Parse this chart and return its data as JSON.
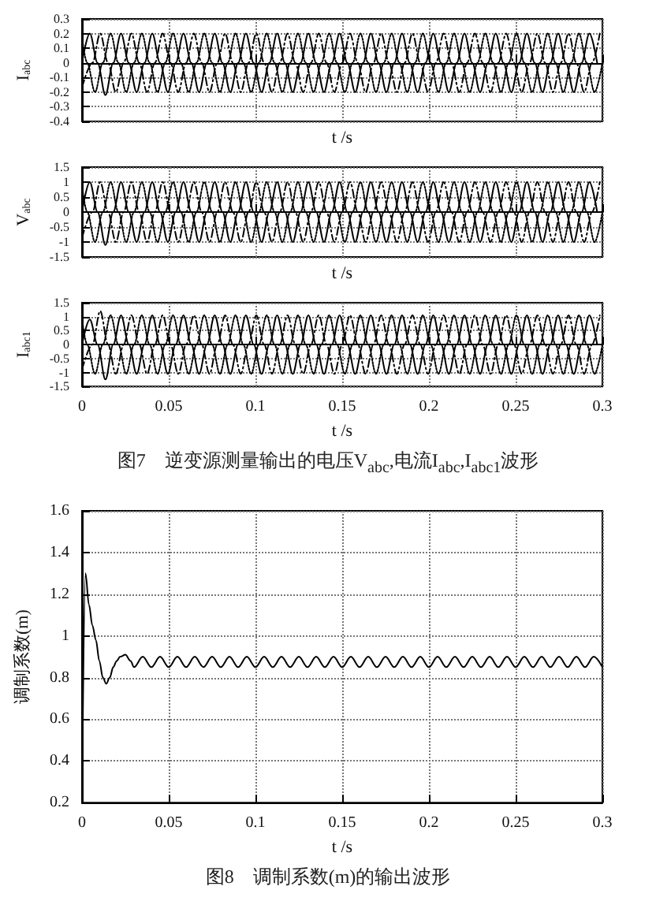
{
  "chart_data": [
    {
      "type": "line",
      "xlabel": "t /s",
      "ylabel": "I$_{abc}$",
      "xlim": [
        0,
        0.3
      ],
      "xticks": [
        0,
        0.05,
        0.1,
        0.15,
        0.2,
        0.25,
        0.3
      ],
      "ylim": [
        -0.4,
        0.3
      ],
      "yticks": [
        -0.4,
        -0.3,
        -0.2,
        -0.1,
        0,
        0.1,
        0.2,
        0.3
      ],
      "grid": true,
      "tick_labels": "y",
      "series": [
        {
          "color": "#000000",
          "line_style": "solid",
          "x": [
            0,
            0.0045,
            0.009,
            0.0135,
            0.018,
            0.0225,
            0.027,
            0.0315,
            0.036,
            0.0405,
            0.045,
            0.0495,
            0.054,
            0.0585,
            0.063,
            0.0675,
            0.072,
            0.0765,
            0.081,
            0.0855,
            0.09,
            0.0945,
            0.099,
            0.1035,
            0.108,
            0.1125,
            0.117,
            0.1215,
            0.126,
            0.1305,
            0.135,
            0.1395,
            0.144,
            0.1485,
            0.153,
            0.1575,
            0.162,
            0.1665,
            0.171,
            0.1755,
            0.18,
            0.1845,
            0.189,
            0.1935,
            0.198,
            0.2025,
            0.207,
            0.2115,
            0.216,
            0.2205,
            0.225,
            0.2295,
            0.234,
            0.2385,
            0.243,
            0.2475,
            0.252,
            0.2565,
            0.261,
            0.2655,
            0.27,
            0.2745,
            0.279,
            0.2835,
            0.288,
            0.2925,
            0.297
          ],
          "values": [
            0,
            0.2,
            0,
            -0.22,
            0,
            0.2,
            0,
            -0.2,
            0,
            0.2,
            0,
            -0.2,
            0,
            0.2,
            0,
            -0.2,
            0,
            0.2,
            0,
            -0.2,
            0,
            0.2,
            0,
            -0.2,
            0,
            0.2,
            0,
            -0.2,
            0,
            0.2,
            0,
            -0.2,
            0,
            0.2,
            0,
            -0.2,
            0,
            0.2,
            0,
            -0.2,
            0,
            0.2,
            0,
            -0.2,
            0,
            0.2,
            0,
            -0.2,
            0,
            0.2,
            0,
            -0.2,
            0,
            0.2,
            0,
            -0.2,
            0,
            0.2,
            0,
            -0.2,
            0,
            0.2,
            0,
            -0.2,
            0,
            0.2,
            0
          ]
        },
        {
          "color": "#000000",
          "line_style": "dashed",
          "x": [
            0,
            0.006,
            0.0105,
            0.015,
            0.0195,
            0.024,
            0.0285,
            0.033,
            0.0375,
            0.042,
            0.0465,
            0.051,
            0.0555,
            0.06,
            0.0645,
            0.069,
            0.0735,
            0.078,
            0.0825,
            0.087,
            0.0915,
            0.096,
            0.1005,
            0.105,
            0.1095,
            0.114,
            0.1185,
            0.123,
            0.1275,
            0.132,
            0.1365,
            0.141,
            0.1455,
            0.15,
            0.1545,
            0.159,
            0.1635,
            0.168,
            0.1725,
            0.177,
            0.1815,
            0.186,
            0.1905,
            0.195,
            0.1995,
            0.204,
            0.2085,
            0.213,
            0.2175,
            0.222,
            0.2265,
            0.231,
            0.2355,
            0.24,
            0.2445,
            0.249,
            0.2535,
            0.258,
            0.2625,
            0.267,
            0.2715,
            0.276,
            0.2805,
            0.285,
            0.2895,
            0.294,
            0.2985
          ],
          "values": [
            -0.17,
            0,
            0.2,
            0,
            -0.2,
            0,
            0.2,
            0,
            -0.2,
            0,
            0.2,
            0,
            -0.2,
            0,
            0.2,
            0,
            -0.2,
            0,
            0.2,
            0,
            -0.2,
            0,
            0.2,
            0,
            -0.2,
            0,
            0.2,
            0,
            -0.2,
            0,
            0.2,
            0,
            -0.2,
            0,
            0.2,
            0,
            -0.2,
            0,
            0.2,
            0,
            -0.2,
            0,
            0.2,
            0,
            -0.2,
            0,
            0.2,
            0,
            -0.2,
            0,
            0.2,
            0,
            -0.2,
            0,
            0.2,
            0,
            -0.2,
            0,
            0.2,
            0,
            -0.2,
            0,
            0.2,
            0,
            -0.2,
            0,
            0.2
          ]
        },
        {
          "color": "#000000",
          "line_style": "dotted",
          "x": [
            0,
            0.003,
            0.0075,
            0.012,
            0.0165,
            0.021,
            0.0255,
            0.03,
            0.0345,
            0.039,
            0.0435,
            0.048,
            0.0525,
            0.057,
            0.0615,
            0.066,
            0.0705,
            0.075,
            0.0795,
            0.084,
            0.0885,
            0.093,
            0.0975,
            0.102,
            0.1065,
            0.111,
            0.1155,
            0.12,
            0.1245,
            0.129,
            0.1335,
            0.138,
            0.1425,
            0.147,
            0.1515,
            0.156,
            0.1605,
            0.165,
            0.1695,
            0.174,
            0.1785,
            0.183,
            0.1875,
            0.192,
            0.1965,
            0.201,
            0.2055,
            0.21,
            0.2145,
            0.219,
            0.2235,
            0.228,
            0.2325,
            0.237,
            0.2415,
            0.246,
            0.2505,
            0.255,
            0.2595,
            0.264,
            0.2685,
            0.273,
            0.2775,
            0.282,
            0.2865,
            0.291,
            0.2955,
            0.3
          ],
          "values": [
            0.17,
            0,
            -0.2,
            0,
            0.2,
            0,
            -0.2,
            0,
            0.2,
            0,
            -0.2,
            0,
            0.2,
            0,
            -0.2,
            0,
            0.2,
            0,
            -0.2,
            0,
            0.2,
            0,
            -0.2,
            0,
            0.2,
            0,
            -0.2,
            0,
            0.2,
            0,
            -0.2,
            0,
            0.2,
            0,
            -0.2,
            0,
            0.2,
            0,
            -0.2,
            0,
            0.2,
            0,
            -0.2,
            0,
            0.2,
            0,
            -0.2,
            0,
            0.2,
            0,
            -0.2,
            0,
            0.2,
            0,
            -0.2,
            0,
            0.2,
            0,
            -0.2,
            0,
            0.2,
            0,
            -0.2,
            0,
            0.2,
            0,
            -0.2,
            0
          ]
        }
      ]
    },
    {
      "type": "line",
      "xlabel": "t /s",
      "ylabel": "V$_{abc}$",
      "xlim": [
        0,
        0.3
      ],
      "xticks": [
        0,
        0.05,
        0.1,
        0.15,
        0.2,
        0.25,
        0.3
      ],
      "ylim": [
        -1.5,
        1.5
      ],
      "yticks": [
        -1.5,
        -1,
        -0.5,
        0,
        0.5,
        1,
        1.5
      ],
      "grid": true,
      "tick_labels": "y",
      "series": [
        {
          "color": "#000000",
          "line_style": "solid",
          "x": [
            0,
            0.0045,
            0.009,
            0.0135,
            0.018,
            0.0225,
            0.027,
            0.0315,
            0.036,
            0.0405,
            0.045,
            0.0495,
            0.054,
            0.0585,
            0.063,
            0.0675,
            0.072,
            0.0765,
            0.081,
            0.0855,
            0.09,
            0.0945,
            0.099,
            0.1035,
            0.108,
            0.1125,
            0.117,
            0.1215,
            0.126,
            0.1305,
            0.135,
            0.1395,
            0.144,
            0.1485,
            0.153,
            0.1575,
            0.162,
            0.1665,
            0.171,
            0.1755,
            0.18,
            0.1845,
            0.189,
            0.1935,
            0.198,
            0.2025,
            0.207,
            0.2115,
            0.216,
            0.2205,
            0.225,
            0.2295,
            0.234,
            0.2385,
            0.243,
            0.2475,
            0.252,
            0.2565,
            0.261,
            0.2655,
            0.27,
            0.2745,
            0.279,
            0.2835,
            0.288,
            0.2925,
            0.297
          ],
          "values": [
            0,
            1,
            0,
            -1.1,
            0,
            1,
            0,
            -1,
            0,
            1,
            0,
            -1,
            0,
            1,
            0,
            -1,
            0,
            1,
            0,
            -1,
            0,
            1,
            0,
            -1,
            0,
            1,
            0,
            -1,
            0,
            1,
            0,
            -1,
            0,
            1,
            0,
            -1,
            0,
            1,
            0,
            -1,
            0,
            1,
            0,
            -1,
            0,
            1,
            0,
            -1,
            0,
            1,
            0,
            -1,
            0,
            1,
            0,
            -1,
            0,
            1,
            0,
            -1,
            0,
            1,
            0,
            -1,
            0,
            1,
            0
          ]
        },
        {
          "color": "#000000",
          "line_style": "dashed",
          "x": [
            0,
            0.006,
            0.0105,
            0.015,
            0.0195,
            0.024,
            0.0285,
            0.033,
            0.0375,
            0.042,
            0.0465,
            0.051,
            0.0555,
            0.06,
            0.0645,
            0.069,
            0.0735,
            0.078,
            0.0825,
            0.087,
            0.0915,
            0.096,
            0.1005,
            0.105,
            0.1095,
            0.114,
            0.1185,
            0.123,
            0.1275,
            0.132,
            0.1365,
            0.141,
            0.1455,
            0.15,
            0.1545,
            0.159,
            0.1635,
            0.168,
            0.1725,
            0.177,
            0.1815,
            0.186,
            0.1905,
            0.195,
            0.1995,
            0.204,
            0.2085,
            0.213,
            0.2175,
            0.222,
            0.2265,
            0.231,
            0.2355,
            0.24,
            0.2445,
            0.249,
            0.2535,
            0.258,
            0.2625,
            0.267,
            0.2715,
            0.276,
            0.2805,
            0.285,
            0.2895,
            0.294,
            0.2985
          ],
          "values": [
            -0.87,
            0,
            1,
            0,
            -1,
            0,
            1,
            0,
            -1,
            0,
            1,
            0,
            -1,
            0,
            1,
            0,
            -1,
            0,
            1,
            0,
            -1,
            0,
            1,
            0,
            -1,
            0,
            1,
            0,
            -1,
            0,
            1,
            0,
            -1,
            0,
            1,
            0,
            -1,
            0,
            1,
            0,
            -1,
            0,
            1,
            0,
            -1,
            0,
            1,
            0,
            -1,
            0,
            1,
            0,
            -1,
            0,
            1,
            0,
            -1,
            0,
            1,
            0,
            -1,
            0,
            1,
            0,
            -1,
            0,
            1
          ]
        },
        {
          "color": "#000000",
          "line_style": "dotted",
          "x": [
            0,
            0.003,
            0.0075,
            0.012,
            0.0165,
            0.021,
            0.0255,
            0.03,
            0.0345,
            0.039,
            0.0435,
            0.048,
            0.0525,
            0.057,
            0.0615,
            0.066,
            0.0705,
            0.075,
            0.0795,
            0.084,
            0.0885,
            0.093,
            0.0975,
            0.102,
            0.1065,
            0.111,
            0.1155,
            0.12,
            0.1245,
            0.129,
            0.1335,
            0.138,
            0.1425,
            0.147,
            0.1515,
            0.156,
            0.1605,
            0.165,
            0.1695,
            0.174,
            0.1785,
            0.183,
            0.1875,
            0.192,
            0.1965,
            0.201,
            0.2055,
            0.21,
            0.2145,
            0.219,
            0.2235,
            0.228,
            0.2325,
            0.237,
            0.2415,
            0.246,
            0.2505,
            0.255,
            0.2595,
            0.264,
            0.2685,
            0.273,
            0.2775,
            0.282,
            0.2865,
            0.291,
            0.2955,
            0.3
          ],
          "values": [
            0.87,
            0,
            -1,
            0,
            1,
            0,
            -1,
            0,
            1,
            0,
            -1,
            0,
            1,
            0,
            -1,
            0,
            1,
            0,
            -1,
            0,
            1,
            0,
            -1,
            0,
            1,
            0,
            -1,
            0,
            1,
            0,
            -1,
            0,
            1,
            0,
            -1,
            0,
            1,
            0,
            -1,
            0,
            1,
            0,
            -1,
            0,
            1,
            0,
            -1,
            0,
            1,
            0,
            -1,
            0,
            1,
            0,
            -1,
            0,
            1,
            0,
            -1,
            0,
            1,
            0,
            -1,
            0,
            1,
            0,
            -1,
            0
          ]
        }
      ]
    },
    {
      "type": "line",
      "xlabel": "t /s",
      "ylabel": "I$_{abc1}$",
      "xlim": [
        0,
        0.3
      ],
      "xticks": [
        0,
        0.05,
        0.1,
        0.15,
        0.2,
        0.25,
        0.3
      ],
      "ylim": [
        -1.5,
        1.5
      ],
      "yticks": [
        -1.5,
        -1,
        -0.5,
        0,
        0.5,
        1,
        1.5
      ],
      "grid": true,
      "annotations": [
        "图7　逆变源测量输出的电压V$_{abc}$,电流I$_{abc}$,I$_{abc1}$波形"
      ],
      "series": [
        {
          "color": "#000000",
          "line_style": "solid",
          "x": [
            0,
            0.0045,
            0.009,
            0.0135,
            0.018,
            0.0225,
            0.027,
            0.0315,
            0.036,
            0.0405,
            0.045,
            0.0495,
            0.054,
            0.0585,
            0.063,
            0.0675,
            0.072,
            0.0765,
            0.081,
            0.0855,
            0.09,
            0.0945,
            0.099,
            0.1035,
            0.108,
            0.1125,
            0.117,
            0.1215,
            0.126,
            0.1305,
            0.135,
            0.1395,
            0.144,
            0.1485,
            0.153,
            0.1575,
            0.162,
            0.1665,
            0.171,
            0.1755,
            0.18,
            0.1845,
            0.189,
            0.1935,
            0.198,
            0.2025,
            0.207,
            0.2115,
            0.216,
            0.2205,
            0.225,
            0.2295,
            0.234,
            0.2385,
            0.243,
            0.2475,
            0.252,
            0.2565,
            0.261,
            0.2655,
            0.27,
            0.2745,
            0.279,
            0.2835,
            0.288,
            0.2925,
            0.297
          ],
          "values": [
            0,
            0.9,
            0,
            -1.25,
            0,
            1.05,
            0,
            -1.05,
            0,
            1.05,
            0,
            -1.05,
            0,
            1.05,
            0,
            -1.05,
            0,
            1.05,
            0,
            -1.05,
            0,
            1.05,
            0,
            -1.05,
            0,
            1.05,
            0,
            -1.05,
            0,
            1.05,
            0,
            -1.05,
            0,
            1.05,
            0,
            -1.05,
            0,
            1.05,
            0,
            -1.05,
            0,
            1.05,
            0,
            -1.05,
            0,
            1.05,
            0,
            -1.05,
            0,
            1.05,
            0,
            -1.05,
            0,
            1.05,
            0,
            -1.05,
            0,
            1.05,
            0,
            -1.05,
            0,
            1.05,
            0,
            -1.05,
            0,
            1.05,
            0
          ]
        },
        {
          "color": "#000000",
          "line_style": "dashed",
          "x": [
            0,
            0.006,
            0.0105,
            0.015,
            0.0195,
            0.024,
            0.0285,
            0.033,
            0.0375,
            0.042,
            0.0465,
            0.051,
            0.0555,
            0.06,
            0.0645,
            0.069,
            0.0735,
            0.078,
            0.0825,
            0.087,
            0.0915,
            0.096,
            0.1005,
            0.105,
            0.1095,
            0.114,
            0.1185,
            0.123,
            0.1275,
            0.132,
            0.1365,
            0.141,
            0.1455,
            0.15,
            0.1545,
            0.159,
            0.1635,
            0.168,
            0.1725,
            0.177,
            0.1815,
            0.186,
            0.1905,
            0.195,
            0.1995,
            0.204,
            0.2085,
            0.213,
            0.2175,
            0.222,
            0.2265,
            0.231,
            0.2355,
            0.24,
            0.2445,
            0.249,
            0.2535,
            0.258,
            0.2625,
            0.267,
            0.2715,
            0.276,
            0.2805,
            0.285,
            0.2895,
            0.294,
            0.2985
          ],
          "values": [
            -0.9,
            0,
            1.2,
            0,
            -1.05,
            0,
            1.05,
            0,
            -1.05,
            0,
            1.05,
            0,
            -1.05,
            0,
            1.05,
            0,
            -1.05,
            0,
            1.05,
            0,
            -1.05,
            0,
            1.05,
            0,
            -1.05,
            0,
            1.05,
            0,
            -1.05,
            0,
            1.05,
            0,
            -1.05,
            0,
            1.05,
            0,
            -1.05,
            0,
            1.05,
            0,
            -1.05,
            0,
            1.05,
            0,
            -1.05,
            0,
            1.05,
            0,
            -1.05,
            0,
            1.05,
            0,
            -1.05,
            0,
            1.05,
            0,
            -1.05,
            0,
            1.05,
            0,
            -1.05,
            0,
            1.05,
            0,
            -1.05,
            0,
            1.05
          ]
        },
        {
          "color": "#000000",
          "line_style": "dotted",
          "x": [
            0,
            0.003,
            0.0075,
            0.012,
            0.0165,
            0.021,
            0.0255,
            0.03,
            0.0345,
            0.039,
            0.0435,
            0.048,
            0.0525,
            0.057,
            0.0615,
            0.066,
            0.0705,
            0.075,
            0.0795,
            0.084,
            0.0885,
            0.093,
            0.0975,
            0.102,
            0.1065,
            0.111,
            0.1155,
            0.12,
            0.1245,
            0.129,
            0.1335,
            0.138,
            0.1425,
            0.147,
            0.1515,
            0.156,
            0.1605,
            0.165,
            0.1695,
            0.174,
            0.1785,
            0.183,
            0.1875,
            0.192,
            0.1965,
            0.201,
            0.2055,
            0.21,
            0.2145,
            0.219,
            0.2235,
            0.228,
            0.2325,
            0.237,
            0.2415,
            0.246,
            0.2505,
            0.255,
            0.2595,
            0.264,
            0.2685,
            0.273,
            0.2775,
            0.282,
            0.2865,
            0.291,
            0.2955,
            0.3
          ],
          "values": [
            0.9,
            0,
            -1.05,
            0,
            1.05,
            0,
            -1.05,
            0,
            1.05,
            0,
            -1.05,
            0,
            1.05,
            0,
            -1.05,
            0,
            1.05,
            0,
            -1.05,
            0,
            1.05,
            0,
            -1.05,
            0,
            1.05,
            0,
            -1.05,
            0,
            1.05,
            0,
            -1.05,
            0,
            1.05,
            0,
            -1.05,
            0,
            1.05,
            0,
            -1.05,
            0,
            1.05,
            0,
            -1.05,
            0,
            1.05,
            0,
            -1.05,
            0,
            1.05,
            0,
            -1.05,
            0,
            1.05,
            0,
            -1.05,
            0,
            1.05,
            0,
            -1.05,
            0,
            1.05,
            0,
            -1.05,
            0,
            1.05,
            0,
            -1.05,
            0
          ]
        }
      ]
    },
    {
      "type": "line",
      "xlabel": "t /s",
      "ylabel": "调制系数(m)",
      "xlim": [
        0,
        0.3
      ],
      "xticks": [
        0,
        0.05,
        0.1,
        0.15,
        0.2,
        0.25,
        0.3
      ],
      "ylim": [
        0.2,
        1.6
      ],
      "yticks": [
        0.2,
        0.4,
        0.6,
        0.8,
        1,
        1.2,
        1.4,
        1.6
      ],
      "grid": true,
      "annotations": [
        "图8　调制系数(m)的输出波形"
      ],
      "series": [
        {
          "color": "#000000",
          "line_style": "solid",
          "x": [
            0,
            0.002,
            0.004,
            0.006,
            0.008,
            0.01,
            0.012,
            0.014,
            0.016,
            0.018,
            0.02,
            0.022,
            0.025,
            0.028,
            0.03,
            0.035,
            0.04,
            0.045,
            0.05,
            0.055,
            0.06,
            0.065,
            0.07,
            0.075,
            0.08,
            0.085,
            0.09,
            0.095,
            0.1,
            0.105,
            0.11,
            0.115,
            0.12,
            0.125,
            0.13,
            0.135,
            0.14,
            0.145,
            0.15,
            0.155,
            0.16,
            0.165,
            0.17,
            0.175,
            0.18,
            0.185,
            0.19,
            0.195,
            0.2,
            0.205,
            0.21,
            0.215,
            0.22,
            0.225,
            0.23,
            0.235,
            0.24,
            0.245,
            0.25,
            0.255,
            0.26,
            0.265,
            0.27,
            0.275,
            0.28,
            0.285,
            0.29,
            0.295,
            0.3
          ],
          "values": [
            0.2,
            1.3,
            1.15,
            1.05,
            0.98,
            0.88,
            0.8,
            0.77,
            0.8,
            0.85,
            0.88,
            0.9,
            0.91,
            0.88,
            0.85,
            0.9,
            0.85,
            0.9,
            0.85,
            0.9,
            0.85,
            0.9,
            0.85,
            0.9,
            0.85,
            0.9,
            0.85,
            0.9,
            0.85,
            0.9,
            0.85,
            0.9,
            0.85,
            0.9,
            0.85,
            0.9,
            0.85,
            0.9,
            0.85,
            0.9,
            0.85,
            0.9,
            0.85,
            0.9,
            0.85,
            0.9,
            0.85,
            0.9,
            0.85,
            0.9,
            0.85,
            0.9,
            0.85,
            0.9,
            0.85,
            0.9,
            0.85,
            0.9,
            0.85,
            0.9,
            0.85,
            0.9,
            0.85,
            0.9,
            0.85,
            0.9,
            0.85,
            0.9,
            0.85
          ]
        }
      ]
    }
  ]
}
